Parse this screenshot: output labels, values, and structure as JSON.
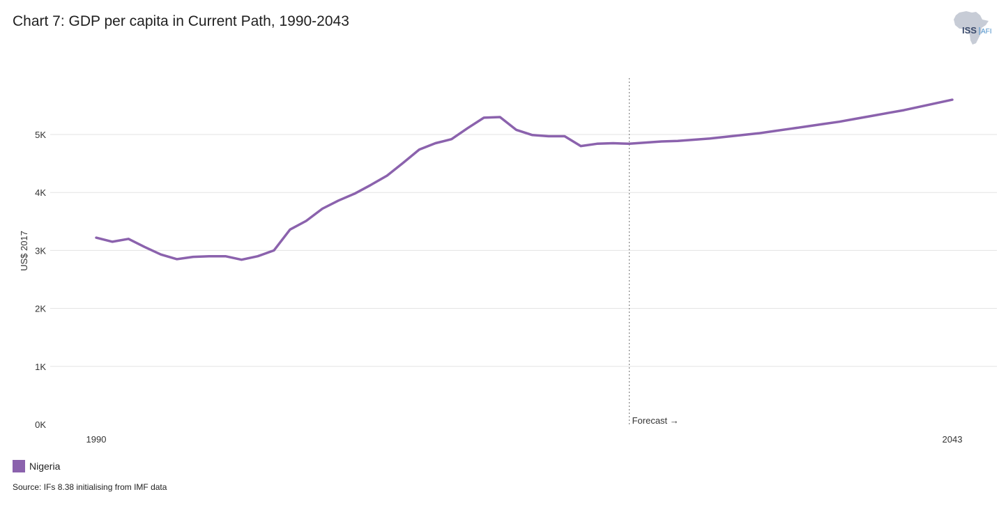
{
  "header": {
    "title": "Chart 7: GDP per capita in Current Path, 1990-2043",
    "logo_text_left": "ISS",
    "logo_text_right": "AFI"
  },
  "footer": {
    "source": "Source: IFs 8.38 initialising from IMF data"
  },
  "colors": {
    "series": "#8b62ad",
    "grid": "#e3e3e3",
    "forecast_line": "#888888",
    "logo_map": "#c7ccd6",
    "logo_text": "#3a4a6b",
    "logo_accent": "#4b8fc9"
  },
  "chart_data": {
    "type": "line",
    "title": "Chart 7: GDP per capita in Current Path, 1990-2043",
    "xlabel": "",
    "ylabel": "US$ 2017",
    "xlim": [
      1990,
      2043
    ],
    "ylim": [
      0,
      6000
    ],
    "x_ticks": [
      1990,
      2043
    ],
    "x_tick_labels": [
      "1990",
      "2043"
    ],
    "y_ticks": [
      0,
      1000,
      2000,
      3000,
      4000,
      5000
    ],
    "y_tick_labels": [
      "0K",
      "1K",
      "2K",
      "3K",
      "4K",
      "5K"
    ],
    "grid": true,
    "legend_position": "bottom-left",
    "forecast_start": 2023,
    "forecast_label": "Forecast →",
    "series": [
      {
        "name": "Nigeria",
        "x": [
          1990,
          1991,
          1992,
          1993,
          1994,
          1995,
          1996,
          1997,
          1998,
          1999,
          2000,
          2001,
          2002,
          2003,
          2004,
          2005,
          2006,
          2007,
          2008,
          2009,
          2010,
          2011,
          2012,
          2013,
          2014,
          2015,
          2016,
          2017,
          2018,
          2019,
          2020,
          2021,
          2022,
          2023,
          2024,
          2025,
          2026,
          2027,
          2028,
          2029,
          2030,
          2031,
          2032,
          2033,
          2034,
          2035,
          2036,
          2037,
          2038,
          2039,
          2040,
          2041,
          2042,
          2043
        ],
        "values": [
          3220,
          3150,
          3200,
          3060,
          2930,
          2850,
          2890,
          2900,
          2900,
          2840,
          2900,
          3000,
          3360,
          3510,
          3720,
          3860,
          3980,
          4130,
          4290,
          4510,
          4740,
          4850,
          4920,
          5110,
          5290,
          5300,
          5080,
          4990,
          4970,
          4970,
          4800,
          4840,
          4850,
          4840,
          4860,
          4880,
          4890,
          4910,
          4930,
          4960,
          4990,
          5020,
          5060,
          5100,
          5140,
          5180,
          5220,
          5270,
          5320,
          5370,
          5420,
          5480,
          5540,
          5600
        ]
      }
    ]
  }
}
